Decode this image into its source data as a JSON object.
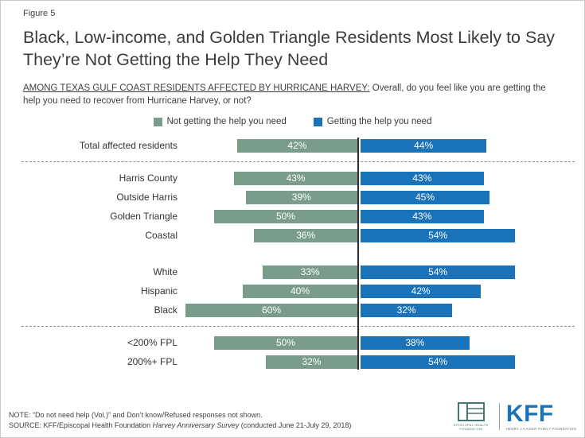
{
  "figure_label": "Figure 5",
  "title": "Black, Low-income, and Golden Triangle Residents Most Likely to Say They’re Not Getting the Help They Need",
  "question": {
    "underlined": "AMONG TEXAS GULF COAST RESIDENTS AFFECTED BY HURRICANE HARVEY:",
    "rest": " Overall, do you feel like you are getting the help you need to recover from Hurricane Harvey, or not?"
  },
  "legend": [
    {
      "label": "Not getting the help you need",
      "color": "#7A9D8B"
    },
    {
      "label": "Getting the help you need",
      "color": "#1A72B8"
    }
  ],
  "chart_data": {
    "type": "bar",
    "variant": "diverging-horizontal",
    "series": [
      "Not getting the help you need",
      "Getting the help you need"
    ],
    "unit": "%",
    "axis": "center-vertical",
    "groups": [
      {
        "rows": [
          {
            "label": "Total affected residents",
            "not_getting": 42,
            "getting": 44
          }
        ],
        "divider_after": "dashed"
      },
      {
        "rows": [
          {
            "label": "Harris County",
            "not_getting": 43,
            "getting": 43
          },
          {
            "label": "Outside Harris",
            "not_getting": 39,
            "getting": 45
          },
          {
            "label": "Golden Triangle",
            "not_getting": 50,
            "getting": 43
          },
          {
            "label": "Coastal",
            "not_getting": 36,
            "getting": 54
          }
        ],
        "divider_after": "gap"
      },
      {
        "rows": [
          {
            "label": "White",
            "not_getting": 33,
            "getting": 54
          },
          {
            "label": "Hispanic",
            "not_getting": 40,
            "getting": 42
          },
          {
            "label": "Black",
            "not_getting": 60,
            "getting": 32
          }
        ],
        "divider_after": "dashed"
      },
      {
        "rows": [
          {
            "label": "<200% FPL",
            "not_getting": 50,
            "getting": 38
          },
          {
            "label": "200%+ FPL",
            "not_getting": 32,
            "getting": 54
          }
        ],
        "divider_after": null
      }
    ]
  },
  "footer": {
    "note": "NOTE: “Do not need help (Vol.)” and Don’t know/Refused responses not shown.",
    "source_prefix": "SOURCE: KFF/Episcopal Health Foundation ",
    "source_italic": "Harvey Anniversary Survey",
    "source_suffix": " (conducted June 21-July 29, 2018)",
    "ehf_text": "EPISCOPAL HEALTH FOUNDATION",
    "kff_text": "KFF",
    "kff_sub": "HENRY J KAISER FAMILY FOUNDATION",
    "kff_color": "#1A72B8",
    "ehf_color": "#45756E"
  }
}
